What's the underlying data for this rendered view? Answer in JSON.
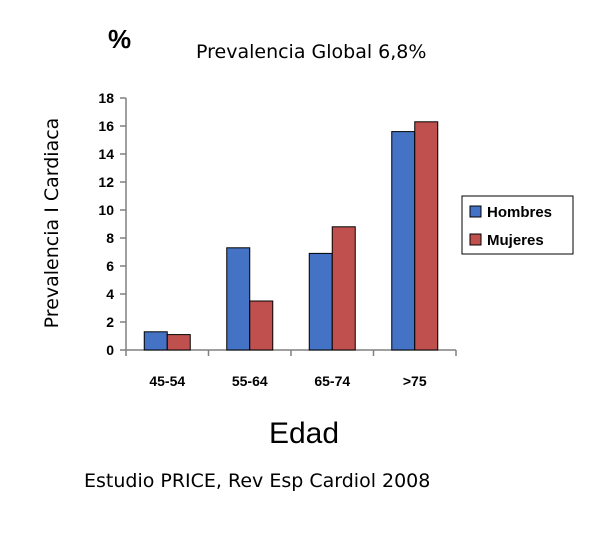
{
  "chart_data": {
    "type": "bar",
    "title": "Prevalencia Global 6,8%",
    "unit_label": "%",
    "xlabel": "Edad",
    "ylabel": "Prevalencia I Cardiaca",
    "categories": [
      "45-54",
      "55-64",
      "65-74",
      ">75"
    ],
    "ylim": [
      0,
      18
    ],
    "yticks": [
      0,
      2,
      4,
      6,
      8,
      10,
      12,
      14,
      16,
      18
    ],
    "grid": false,
    "legend_position": "right",
    "series": [
      {
        "name": "Hombres",
        "color": "#4472C4",
        "values": [
          1.3,
          7.3,
          6.9,
          15.6
        ]
      },
      {
        "name": "Mujeres",
        "color": "#C0504D",
        "values": [
          1.1,
          3.5,
          8.8,
          16.3
        ]
      }
    ],
    "source": "Estudio PRICE, Rev Esp Cardiol 2008"
  }
}
